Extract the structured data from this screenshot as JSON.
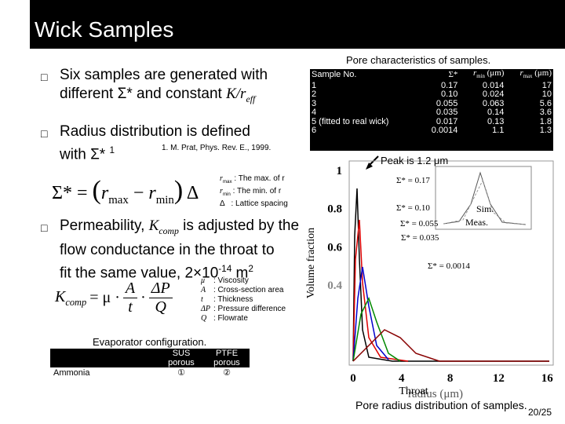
{
  "header": {
    "title": "Wick Samples"
  },
  "bullets": [
    {
      "line1": "Six samples are generated with",
      "line2": "different Σ* and constant ",
      "k": "K",
      "r": "/r",
      "sub": "eff"
    },
    {
      "line1": "Radius distribution is defined",
      "line2": "with Σ*",
      "sup": "1",
      "note": "1. M. Prat, Phys. Rev. E., 1999."
    },
    {
      "p1": "Permeability, ",
      "k": "K",
      "sub": "comp",
      "p2": " is adjusted by the",
      "line2": "flow conductance in the throat to",
      "line3": "fit the same value, 2×10",
      "exp": "-14",
      "unit": " m",
      "unit_exp": "2"
    }
  ],
  "equation1": {
    "lhs": "Σ* =",
    "open": "(",
    "r1": "r",
    "sub1": "max",
    "minus": "−",
    "r2": "r",
    "sub2": "min",
    "close": ")",
    "denom": "Δ"
  },
  "definitions1": [
    {
      "sym": "r",
      "sub": "max",
      "desc": ": The max. of r"
    },
    {
      "sym": "r",
      "sub": "min",
      "desc": ": The min. of r"
    },
    {
      "sym": "Δ",
      "desc": ": Lattice spacing"
    }
  ],
  "equation2": {
    "k": "K",
    "sub": "comp",
    "eq": "= μ ·",
    "num1": "A",
    "den1": "t",
    "dot": "·",
    "num2": "ΔP",
    "den2": "Q"
  },
  "definitions2": [
    {
      "sym": "μ",
      "desc": ": Viscosity"
    },
    {
      "sym": "A",
      "desc": ": Cross-section area"
    },
    {
      "sym": "t",
      "desc": ": Thickness"
    },
    {
      "sym": "ΔP",
      "desc": ": Pressure difference"
    },
    {
      "sym": "Q",
      "desc": ": Flowrate"
    }
  ],
  "evaporator": {
    "caption": "Evaporator configuration.",
    "columns": [
      {
        "line1": "SUS",
        "line2": "porous",
        "mark": "①"
      },
      {
        "line1": "PTFE",
        "line2": "porous",
        "mark": "②"
      }
    ],
    "row": "Ammonia"
  },
  "pore_table": {
    "title": "Pore characteristics of samples.",
    "columns": [
      {
        "text": "Sample No."
      },
      {
        "text": "Σ*"
      },
      {
        "sym": "r",
        "sub": "min",
        "unit": " (μm)"
      },
      {
        "sym": "r",
        "sub": "max",
        "unit": " (μm)"
      }
    ],
    "rows": [
      [
        "1",
        "0.17",
        "0.014",
        "17"
      ],
      [
        "2",
        "0.10",
        "0.024",
        "10"
      ],
      [
        "3",
        "0.055",
        "0.063",
        "5.6"
      ],
      [
        "4",
        "0.035",
        "0.14",
        "3.6"
      ],
      [
        "5 (fitted to real wick)",
        "0.017",
        "0.13",
        "1.8"
      ],
      [
        "6",
        "0.0014",
        "1.1",
        "1.3"
      ]
    ]
  },
  "annotation": "Peak is 1.2 μm",
  "figure": {
    "ylabel": "Volume fraction",
    "yticks": [
      "1",
      "0.8",
      "0.6",
      "0.4"
    ],
    "xticks": [
      "0",
      "4",
      "8",
      "12",
      "16"
    ],
    "xlabel_over": "Throat",
    "xlabel": "radius (μm)",
    "legend": [
      "Σ* = 0.17",
      "Σ* = 0.10",
      "Σ* = 0.055",
      "Σ* = 0.035",
      "Σ* = 0.0014"
    ],
    "sim": "Sim.",
    "meas": "Meas.",
    "caption": "Pore radius distribution of samples."
  },
  "page": "20/25"
}
